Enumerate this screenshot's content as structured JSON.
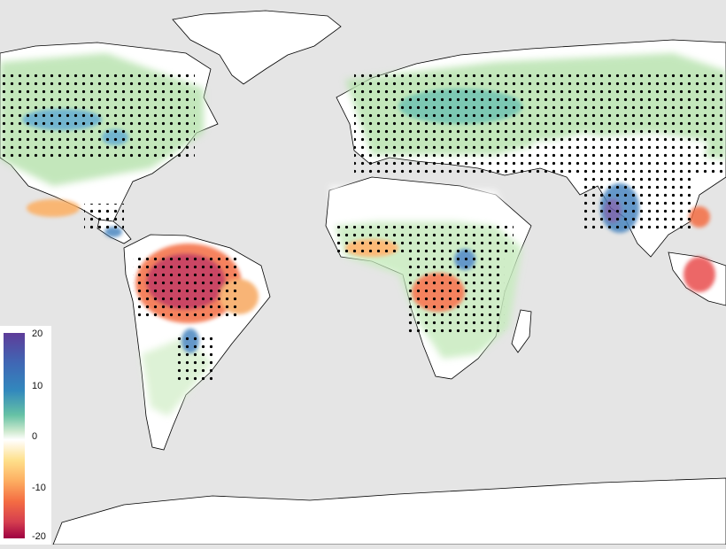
{
  "legend": {
    "tick_labels": [
      "20",
      "10",
      "0",
      "-10",
      "-20"
    ],
    "colors": [
      "#5e3c99",
      "#3288bd",
      "#66c2a5",
      "#abdda4",
      "#e6f5e0",
      "#ffffff",
      "#fee08b",
      "#fdae61",
      "#f46d43",
      "#d53e4f",
      "#9e0142"
    ]
  },
  "map": {
    "ocean_color": "#e5e5e5",
    "land_color": "#ffffff",
    "coastline_color": "#000000",
    "stipple_color": "#000000",
    "projection": "equirectangular"
  }
}
